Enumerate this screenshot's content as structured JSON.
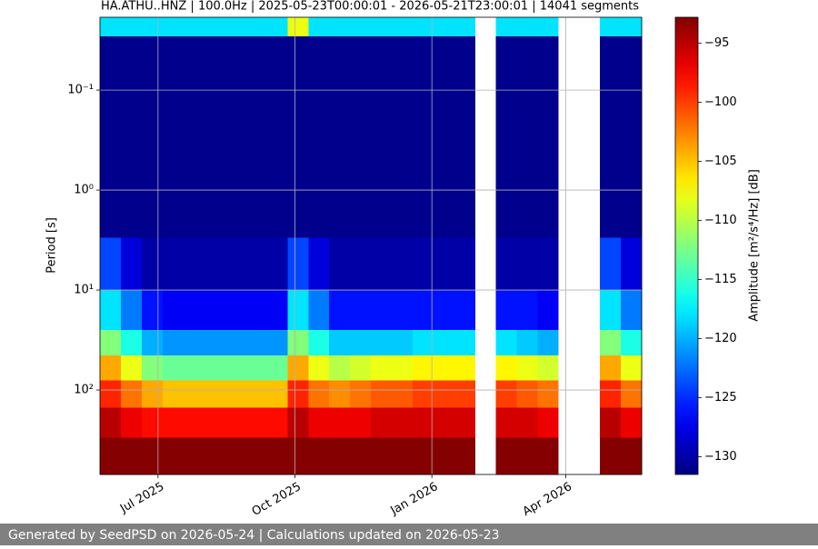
{
  "chart_data": {
    "type": "heatmap",
    "title": "HA.ATHU..HNZ | 100.0Hz | 2025-05-23T00:00:01 - 2026-05-21T23:00:01 | 14041 segments",
    "ylabel": "Period [s]",
    "colorbar_label": "Amplitude [m²/s⁴/Hz] [dB]",
    "cmap": "jet",
    "grid": true,
    "yscale": "log",
    "yinvert": true,
    "xlim": [
      "2025-05-23T00:00:01",
      "2026-05-21T23:00:01"
    ],
    "xticks": [
      {
        "value": "2025-07-01",
        "label": "Jul 2025"
      },
      {
        "value": "2025-10-01",
        "label": "Oct 2025"
      },
      {
        "value": "2026-01-01",
        "label": "Jan 2026"
      },
      {
        "value": "2026-04-01",
        "label": "Apr 2026"
      }
    ],
    "ylim": [
      0.0187,
      700
    ],
    "yticks": [
      {
        "value": 0.1,
        "label": "10⁻¹"
      },
      {
        "value": 1,
        "label": "10⁰"
      },
      {
        "value": 10,
        "label": "10¹"
      },
      {
        "value": 100,
        "label": "10²"
      }
    ],
    "clim": [
      -131.5,
      -92.8
    ],
    "cticks": [
      {
        "value": -130,
        "label": "−130"
      },
      {
        "value": -125,
        "label": "−125"
      },
      {
        "value": -120,
        "label": "−120"
      },
      {
        "value": -115,
        "label": "−115"
      },
      {
        "value": -110,
        "label": "−110"
      },
      {
        "value": -105,
        "label": "−105"
      },
      {
        "value": -100,
        "label": "−100"
      },
      {
        "value": -95,
        "label": "−95"
      }
    ],
    "xbins": [
      "2025-05-23T00:00:01",
      "2025-06-06",
      "2025-06-20",
      "2025-07-04",
      "2025-07-18",
      "2025-08-01",
      "2025-08-15",
      "2025-08-29",
      "2025-09-12",
      "2025-09-26",
      "2025-10-10",
      "2025-10-24",
      "2025-11-07",
      "2025-11-21",
      "2025-12-05",
      "2025-12-19",
      "2026-01-02",
      "2026-01-16",
      "2026-01-30",
      "2026-02-13",
      "2026-02-27",
      "2026-03-13",
      "2026-03-27",
      "2026-04-10",
      "2026-04-24",
      "2026-05-08",
      "2026-05-21T23:00:01"
    ],
    "ybins": [
      0.0187,
      0.029,
      3,
      10,
      25,
      45,
      80,
      150,
      300,
      700
    ],
    "values": [
      [
        -118,
        -118,
        -118,
        -118,
        -118,
        -118,
        -118,
        -118,
        -118,
        -108,
        -118,
        -118,
        -118,
        -118,
        -118,
        -118,
        -118,
        -118,
        null,
        -118,
        -118,
        -118,
        null,
        null,
        -118,
        -118
      ],
      [
        -131,
        -131,
        -131,
        -131,
        -131,
        -131,
        -131,
        -131,
        -131,
        -131,
        -131,
        -131,
        -131,
        -131,
        -131,
        -131,
        -131,
        -131,
        null,
        -131,
        -131,
        -131,
        null,
        null,
        -131,
        -131
      ],
      [
        -124,
        -128,
        -130,
        -130,
        -130,
        -130,
        -130,
        -130,
        -130,
        -124,
        -128,
        -130,
        -130,
        -130,
        -130,
        -130,
        -130,
        -130,
        null,
        -130,
        -130,
        -130,
        null,
        null,
        -124,
        -128
      ],
      [
        -118,
        -122,
        -126,
        -127,
        -127,
        -127,
        -127,
        -127,
        -127,
        -118,
        -122,
        -126,
        -126,
        -126,
        -126,
        -126,
        -126,
        -126,
        null,
        -126,
        -126,
        -127,
        null,
        null,
        -118,
        -122
      ],
      [
        -112,
        -116,
        -120,
        -121,
        -121,
        -121,
        -121,
        -121,
        -121,
        -112,
        -116,
        -119,
        -119,
        -119,
        -119,
        -118,
        -118,
        -118,
        null,
        -118,
        -119,
        -120,
        null,
        null,
        -112,
        -116
      ],
      [
        -104,
        -108,
        -112,
        -113,
        -113,
        -113,
        -113,
        -113,
        -113,
        -104,
        -108,
        -110,
        -109,
        -108,
        -108,
        -107,
        -107,
        -107,
        null,
        -107,
        -108,
        -109,
        null,
        null,
        -104,
        -108
      ],
      [
        -99,
        -102,
        -104,
        -105,
        -105,
        -105,
        -105,
        -105,
        -105,
        -99,
        -102,
        -103,
        -102,
        -101,
        -101,
        -100,
        -100,
        -100,
        null,
        -100,
        -101,
        -102,
        null,
        null,
        -99,
        -102
      ],
      [
        -95,
        -97,
        -98,
        -98,
        -98,
        -98,
        -98,
        -98,
        -98,
        -95,
        -97,
        -97,
        -97,
        -96,
        -96,
        -96,
        -96,
        -96,
        null,
        -96,
        -96,
        -97,
        null,
        null,
        -95,
        -97
      ],
      [
        -93,
        -93,
        -93,
        -93,
        -93,
        -93,
        -93,
        -93,
        -93,
        -93,
        -93,
        -93,
        -93,
        -93,
        -93,
        -93,
        -93,
        -93,
        null,
        -93,
        -93,
        -93,
        null,
        null,
        -93,
        -93
      ]
    ]
  },
  "footer": "Generated by SeedPSD on 2026-05-24 | Calculations updated on 2026-05-23"
}
